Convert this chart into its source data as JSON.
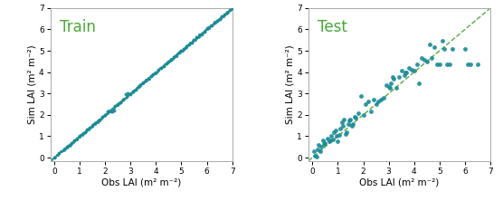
{
  "train_obs": [
    0.0,
    0.2,
    0.4,
    0.5,
    0.6,
    0.7,
    0.8,
    0.9,
    1.0,
    1.1,
    1.2,
    1.3,
    1.4,
    1.5,
    1.6,
    1.7,
    1.8,
    1.9,
    2.0,
    2.1,
    2.15,
    2.2,
    2.25,
    2.3,
    2.35,
    2.4,
    2.5,
    2.6,
    2.7,
    2.8,
    2.9,
    3.0,
    3.1,
    3.2,
    3.3,
    3.4,
    3.5,
    3.6,
    3.7,
    3.8,
    3.9,
    4.0,
    4.1,
    4.2,
    4.3,
    4.4,
    4.5,
    4.6,
    4.7,
    4.8,
    4.9,
    5.0,
    5.1,
    5.2,
    5.3,
    5.4,
    5.5,
    5.6,
    5.7,
    5.8,
    5.9,
    6.0,
    6.1,
    6.2,
    6.3,
    6.4,
    6.5,
    6.6,
    6.7,
    6.8,
    6.9,
    7.0
  ],
  "train_sim": [
    0.0,
    0.2,
    0.4,
    0.5,
    0.6,
    0.7,
    0.8,
    0.9,
    1.0,
    1.1,
    1.2,
    1.3,
    1.4,
    1.5,
    1.6,
    1.7,
    1.8,
    1.9,
    2.0,
    2.15,
    2.18,
    2.22,
    2.16,
    2.18,
    2.21,
    2.4,
    2.5,
    2.6,
    2.7,
    2.95,
    3.0,
    2.97,
    3.1,
    3.2,
    3.3,
    3.4,
    3.5,
    3.6,
    3.7,
    3.8,
    3.9,
    4.0,
    4.1,
    4.2,
    4.3,
    4.4,
    4.5,
    4.6,
    4.7,
    4.8,
    4.9,
    5.0,
    5.1,
    5.2,
    5.3,
    5.4,
    5.5,
    5.65,
    5.7,
    5.75,
    5.9,
    6.05,
    6.1,
    6.2,
    6.3,
    6.4,
    6.5,
    6.6,
    6.7,
    6.8,
    6.9,
    7.0
  ],
  "train_dense_x": [
    -0.1,
    0.0,
    0.05,
    0.1,
    0.15,
    0.2,
    0.25,
    0.3,
    0.35,
    0.4,
    0.45,
    0.5,
    0.55,
    0.6,
    0.65,
    0.7,
    0.75,
    0.8,
    0.85,
    0.9,
    0.95,
    1.0,
    1.05,
    1.1,
    1.15,
    1.2,
    1.25,
    1.3,
    1.35,
    1.4,
    1.45,
    1.5,
    1.55,
    1.6,
    1.65,
    1.7,
    1.75,
    1.8,
    1.85,
    1.9,
    1.95,
    2.0,
    2.05,
    2.1,
    2.2,
    2.3,
    2.35,
    2.4,
    2.45,
    2.5,
    2.55,
    2.6,
    2.65,
    2.7,
    2.75,
    2.8,
    2.85,
    2.9,
    2.95,
    3.0,
    3.05,
    3.1,
    3.15,
    3.2,
    3.25,
    3.3,
    3.35,
    3.4,
    3.45,
    3.5,
    3.55,
    3.6,
    3.65,
    3.7,
    3.75,
    3.8,
    3.85,
    3.9,
    3.95,
    4.0,
    4.05,
    4.1,
    4.15,
    4.2,
    4.25,
    4.3,
    4.35,
    4.4,
    4.45,
    4.5,
    4.55,
    4.6,
    4.65,
    4.7,
    4.75,
    4.8,
    4.85,
    4.9,
    4.95,
    5.0,
    5.05,
    5.1,
    5.15,
    5.2,
    5.25,
    5.3,
    5.35,
    5.4,
    5.45,
    5.5,
    5.55,
    5.6,
    5.65,
    5.7,
    5.75,
    5.8,
    5.85,
    5.9,
    5.95,
    6.0,
    6.05,
    6.1,
    6.15,
    6.2,
    6.25,
    6.3,
    6.35,
    6.4,
    6.45,
    6.5,
    6.55,
    6.6,
    6.65,
    6.7,
    6.75,
    6.8,
    6.85,
    6.9,
    6.95,
    7.0
  ],
  "test_obs": [
    0.05,
    0.1,
    0.15,
    0.2,
    0.25,
    0.3,
    0.35,
    0.4,
    0.45,
    0.5,
    0.6,
    0.65,
    0.7,
    0.75,
    0.8,
    0.85,
    0.9,
    0.95,
    1.0,
    1.05,
    1.1,
    1.15,
    1.2,
    1.25,
    1.3,
    1.35,
    1.4,
    1.45,
    1.5,
    1.55,
    1.6,
    1.65,
    1.7,
    1.8,
    1.9,
    2.0,
    2.1,
    2.2,
    2.3,
    2.4,
    2.5,
    2.6,
    2.7,
    2.8,
    2.9,
    3.0,
    3.05,
    3.1,
    3.15,
    3.2,
    3.3,
    3.4,
    3.5,
    3.6,
    3.65,
    3.7,
    3.8,
    3.9,
    4.0,
    4.1,
    4.2,
    4.3,
    4.4,
    4.5,
    4.6,
    4.7,
    4.8,
    4.9,
    5.0,
    5.1,
    5.2,
    5.3,
    5.4,
    5.5,
    6.0,
    6.1,
    6.2,
    6.5
  ],
  "test_sim": [
    0.3,
    0.08,
    0.05,
    0.38,
    0.6,
    0.28,
    0.5,
    0.82,
    0.65,
    0.68,
    0.88,
    0.78,
    0.82,
    1.0,
    0.85,
    1.2,
    1.28,
    1.0,
    0.78,
    1.08,
    1.35,
    1.65,
    1.5,
    1.78,
    1.1,
    1.18,
    1.55,
    1.72,
    1.78,
    1.5,
    1.58,
    1.92,
    1.88,
    2.1,
    2.88,
    2.0,
    2.5,
    2.62,
    2.18,
    2.72,
    2.5,
    2.62,
    2.72,
    2.78,
    3.38,
    3.32,
    3.28,
    3.48,
    3.78,
    3.68,
    3.28,
    3.78,
    4.08,
    3.88,
    3.98,
    3.98,
    4.18,
    4.12,
    4.08,
    4.38,
    3.48,
    4.68,
    4.58,
    4.48,
    5.28,
    4.68,
    5.18,
    4.38,
    4.38,
    5.48,
    5.08,
    4.38,
    4.38,
    5.08,
    5.08,
    4.38,
    4.38,
    4.38
  ],
  "dot_color": "#1a8a96",
  "line_color": "#55aa44",
  "label_color": "#44aa33",
  "axis_min": -0.15,
  "axis_max": 7.0,
  "ticks": [
    0,
    1,
    2,
    3,
    4,
    5,
    6,
    7
  ],
  "xlabel": "Obs LAI (m² m⁻²)",
  "ylabel": "Sim LAI (m² m⁻²)",
  "train_label": "Train",
  "test_label": "Test",
  "dot_size": 8,
  "dense_dot_size": 5,
  "dot_alpha": 0.9,
  "line_style": "--",
  "line_width": 1.0,
  "font_size_label": 7.5,
  "font_size_tick": 6.5,
  "font_size_tag": 12,
  "bg_color": "#ffffff",
  "spine_color": "#aaaaaa"
}
